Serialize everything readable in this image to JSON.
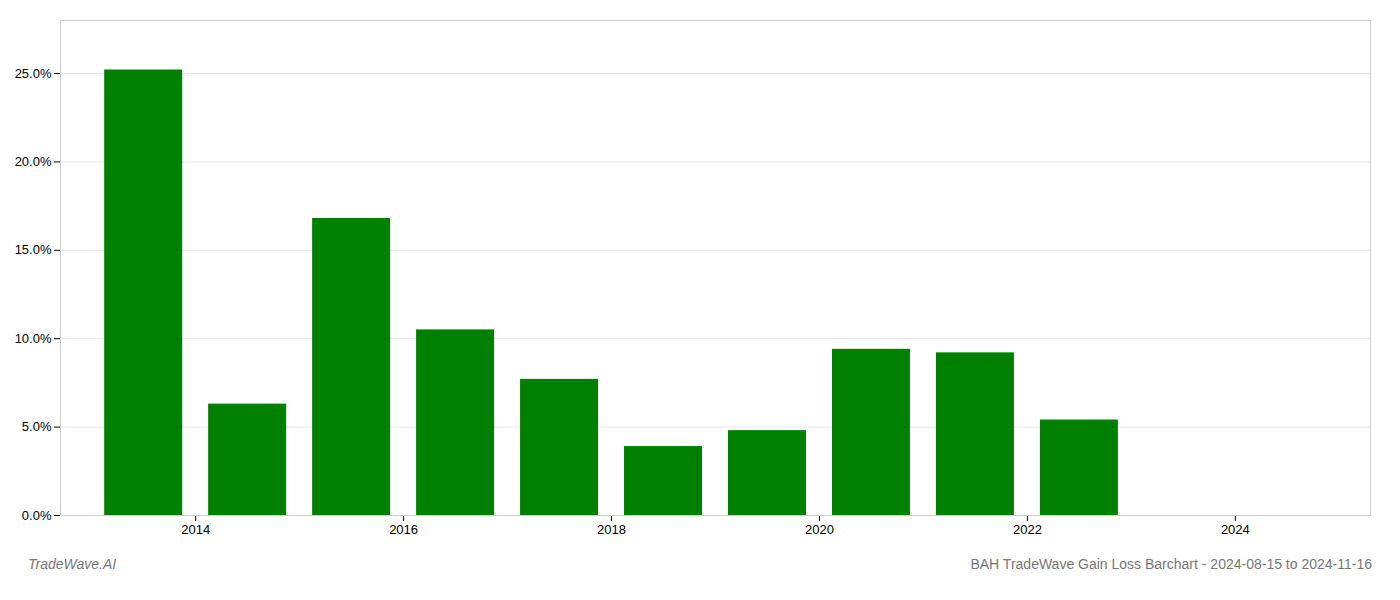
{
  "chart_data": {
    "type": "bar",
    "title": "BAH TradeWave Gain Loss Barchart - 2024-08-15 to 2024-11-16",
    "annotations": [
      "TradeWave.AI"
    ],
    "x": [
      2013,
      2014,
      2015,
      2016,
      2017,
      2018,
      2019,
      2020,
      2021,
      2022,
      2023
    ],
    "values": [
      0.252,
      0.063,
      0.168,
      0.105,
      0.077,
      0.039,
      0.048,
      0.094,
      0.092,
      0.054,
      0.0
    ],
    "color": "#008000",
    "xlim": [
      2012.2,
      2024.8
    ],
    "xticks": [
      {
        "value": 2013.5,
        "label": "2014"
      },
      {
        "value": 2015.5,
        "label": "2016"
      },
      {
        "value": 2017.5,
        "label": "2018"
      },
      {
        "value": 2019.5,
        "label": "2020"
      },
      {
        "value": 2021.5,
        "label": "2022"
      },
      {
        "value": 2023.5,
        "label": "2024"
      }
    ],
    "ylim": [
      0,
      0.28
    ],
    "yticks": [
      {
        "value": 0.0,
        "label": "0.0%"
      },
      {
        "value": 0.05,
        "label": "5.0%"
      },
      {
        "value": 0.1,
        "label": "10.0%"
      },
      {
        "value": 0.15,
        "label": "15.0%"
      },
      {
        "value": 0.2,
        "label": "20.0%"
      },
      {
        "value": 0.25,
        "label": "25.0%"
      }
    ],
    "grid": "y"
  }
}
